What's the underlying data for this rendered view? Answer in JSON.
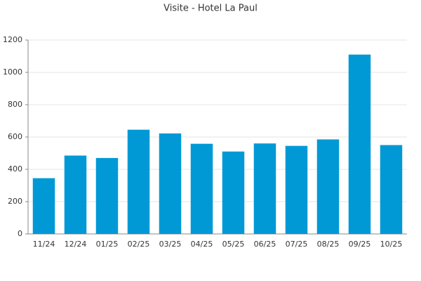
{
  "chart_data": {
    "type": "bar",
    "title": "Visite - Hotel La Paul",
    "categories": [
      "11/24",
      "12/24",
      "01/25",
      "02/25",
      "03/25",
      "04/25",
      "05/25",
      "06/25",
      "07/25",
      "08/25",
      "09/25",
      "10/25"
    ],
    "values": [
      345,
      485,
      470,
      645,
      622,
      558,
      510,
      560,
      545,
      585,
      1110,
      550
    ],
    "color": "#0099d6",
    "ylim": [
      0,
      1200
    ],
    "yticks": [
      0,
      200,
      400,
      600,
      800,
      1000,
      1200
    ],
    "grid": true
  }
}
